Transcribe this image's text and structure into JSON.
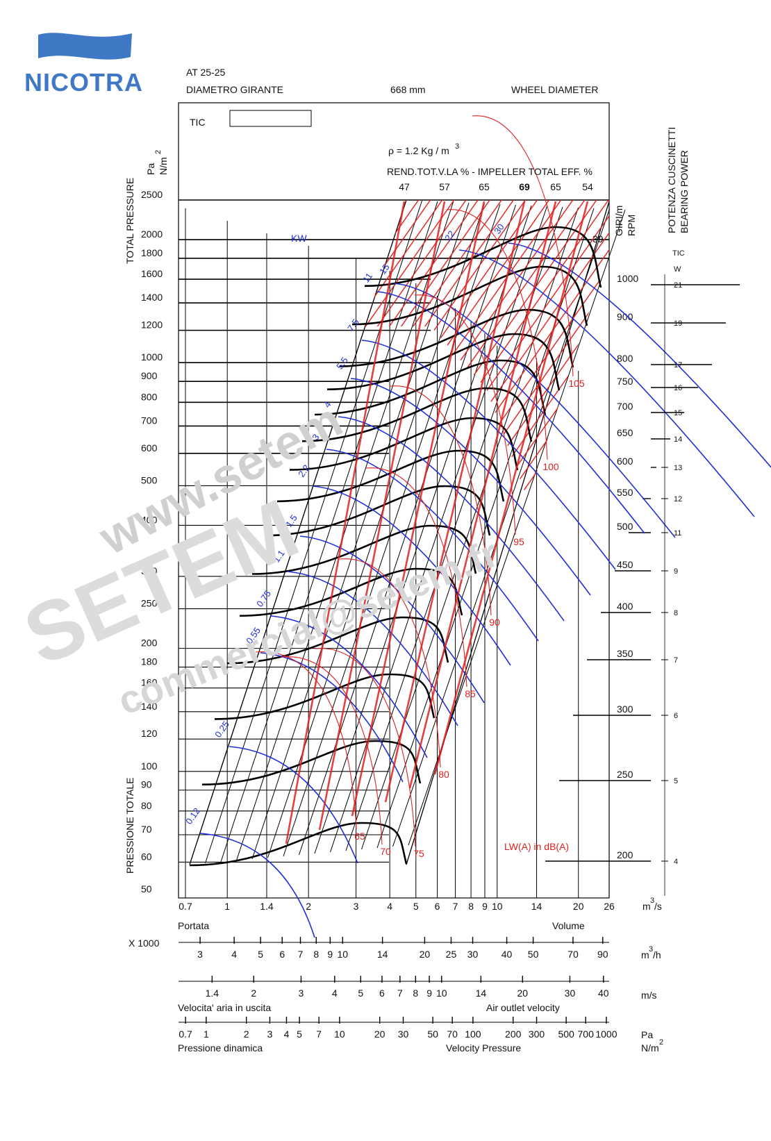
{
  "brand": "NICOTRA",
  "header": {
    "model": "AT 25-25",
    "diameter_label_it": "DIAMETRO GIRANTE",
    "diameter_value": "668 mm",
    "diameter_label_en": "WHEEL DIAMETER"
  },
  "chart_data": {
    "type": "line",
    "tic_label": "TIC",
    "density_label": "ρ = 1.2 Kg / m",
    "density_exp": "3",
    "efficiency_title": "REND.TOT.V.LA % - IMPELLER TOTAL EFF. %",
    "efficiency_values": [
      "47",
      "57",
      "65",
      "69",
      "65",
      "54"
    ],
    "y_axis": {
      "label_top": "TOTAL PRESSURE",
      "label_bottom": "PRESSIONE TOTALE",
      "unit_pa": "Pa",
      "unit_nm": "N/m",
      "unit_exp": "2",
      "scale": "log",
      "range": [
        50,
        2500
      ],
      "ticks": [
        2500,
        2000,
        1800,
        1600,
        1400,
        1200,
        1000,
        900,
        800,
        700,
        600,
        500,
        400,
        300,
        250,
        200,
        180,
        160,
        140,
        120,
        100,
        90,
        80,
        70,
        60,
        50
      ]
    },
    "x_axis": {
      "unit": "m",
      "unit_exp": "3",
      "unit_suffix": "/s",
      "scale": "log",
      "range": [
        0.7,
        26
      ],
      "ticks": [
        0.7,
        1,
        1.4,
        2,
        3,
        4,
        5,
        6,
        7,
        8,
        9,
        10,
        14,
        20,
        26
      ],
      "label_it": "Portata",
      "label_en": "Volume"
    },
    "x_axis_m3h": {
      "multiplier": "X 1000",
      "unit": "m",
      "unit_exp": "3",
      "unit_suffix": "/h",
      "ticks": [
        3,
        4,
        5,
        6,
        7,
        8,
        9,
        10,
        14,
        20,
        25,
        30,
        40,
        50,
        70,
        90
      ]
    },
    "x_axis_velocity": {
      "unit": "m/s",
      "ticks": [
        1.4,
        2,
        3,
        4,
        5,
        6,
        7,
        8,
        9,
        10,
        14,
        20,
        30,
        40
      ],
      "label_it": "Velocita' aria in uscita",
      "label_en": "Air outlet velocity"
    },
    "x_axis_dynamic_pressure": {
      "unit_pa": "Pa",
      "unit_nm": "N/m",
      "unit_exp": "2",
      "ticks": [
        0.7,
        1,
        2,
        3,
        4,
        5,
        7,
        10,
        20,
        30,
        50,
        70,
        100,
        200,
        300,
        500,
        700,
        1000
      ],
      "label_it": "Pressione dinamica",
      "label_en": "Velocity Pressure"
    },
    "rpm_axis": {
      "label_it": "GIRI/m",
      "label_en": "RPM",
      "ticks": [
        1000,
        900,
        800,
        750,
        700,
        650,
        600,
        550,
        500,
        450,
        400,
        350,
        300,
        250,
        200
      ],
      "top_value": "39"
    },
    "bearing_axis": {
      "label_it": "POTENZA CUSCINETTI",
      "label_en": "BEARING POWER",
      "tic": "TIC",
      "unit": "W",
      "ticks": [
        "21",
        "19",
        "17",
        "16",
        "15",
        "14",
        "13",
        "12",
        "11",
        "9",
        "8",
        "7",
        "6",
        "5",
        "4"
      ]
    },
    "power_label": "KW",
    "power_curves": [
      "0.12",
      "0.25",
      "0.55",
      "0.75",
      "1.1",
      "1.5",
      "2.2",
      "3",
      "4",
      "5.5",
      "7.5",
      "11",
      "15",
      "22",
      "30"
    ],
    "noise_label": "LW(A) in dB(A)",
    "noise_curves": [
      "65",
      "70",
      "75",
      "80",
      "85",
      "90",
      "95",
      "100",
      "105"
    ],
    "speed_curves_rpm": [
      200,
      250,
      300,
      350,
      400,
      450,
      500,
      550,
      600,
      650,
      700,
      750,
      800,
      900,
      1000
    ]
  },
  "watermark": {
    "line1": "www.setem",
    "line2": "SETEM",
    "line3": "commercial@setem.fr"
  }
}
